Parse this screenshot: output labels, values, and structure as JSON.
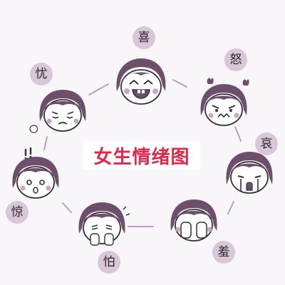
{
  "title": "女生情绪图",
  "emotions": [
    {
      "key": "happy",
      "label": "喜"
    },
    {
      "key": "angry",
      "label": "怒"
    },
    {
      "key": "sad",
      "label": "哀"
    },
    {
      "key": "shy",
      "label": "羞"
    },
    {
      "key": "afraid",
      "label": "怕"
    },
    {
      "key": "startled",
      "label": "惊"
    },
    {
      "key": "worried",
      "label": "忧"
    }
  ],
  "colors": {
    "background": "#f8f6f8",
    "hair": "#6d4f6c",
    "bubble": "#d9c6d8",
    "blush": "#c9a6c9",
    "connector": "#b8a0b8",
    "title": "#e0284a"
  }
}
